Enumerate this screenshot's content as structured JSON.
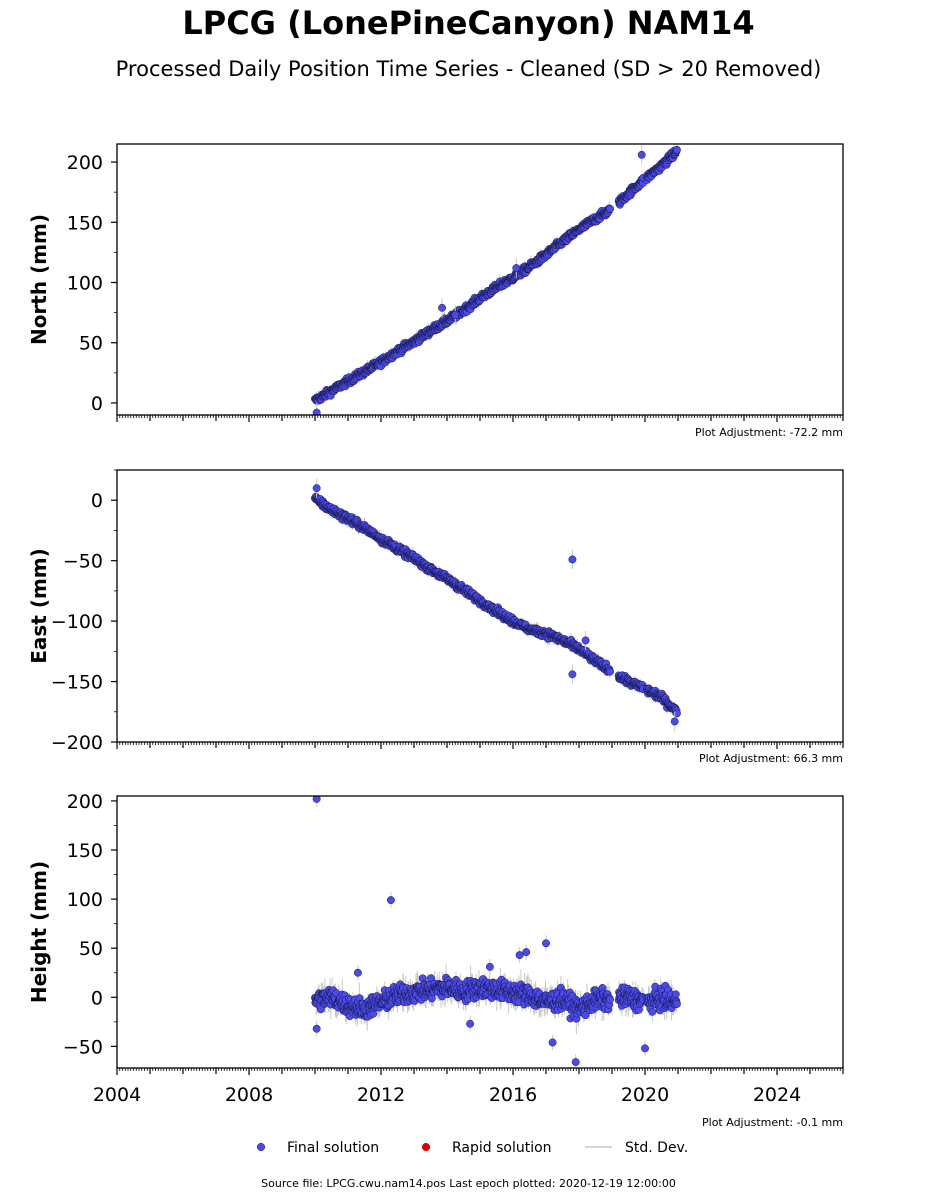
{
  "title": "LPCG (LonePineCanyon) NAM14",
  "subtitle": "Processed Daily Position Time Series - Cleaned (SD > 20 Removed)",
  "source_note": "Source file: LPCG.cwu.nam14.pos  Last epoch plotted: 2020-12-19 12:00:00",
  "colors": {
    "final": "#4a4aee",
    "final_edge": "#1a1a4a",
    "rapid": "#dd0000",
    "std": "#c8c8c8"
  },
  "legend": [
    {
      "label": "Final solution",
      "marker": "circle",
      "color": "#4a4aee"
    },
    {
      "label": "Rapid solution",
      "marker": "circle",
      "color": "#dd0000"
    },
    {
      "label": "Std. Dev.",
      "marker": "line",
      "color": "#c8c8c8"
    }
  ],
  "chart_data": [
    {
      "type": "scatter",
      "ylabel": "North (mm)",
      "adjustment": "Plot Adjustment: -72.2 mm",
      "xlim": [
        2004.0,
        2026.0
      ],
      "ylim": [
        -10,
        215
      ],
      "yticks": [
        0,
        50,
        100,
        150,
        200
      ],
      "yticklabels": [
        "0",
        "50",
        "100",
        "150",
        "200"
      ],
      "xticklabels": [],
      "series": [
        {
          "x": [
            2010.0,
            2010.5,
            2011.0,
            2011.5,
            2012.0,
            2012.5,
            2013.0,
            2013.5,
            2014.0,
            2014.5,
            2015.0,
            2015.5,
            2016.0,
            2016.5,
            2017.0,
            2017.5,
            2018.0,
            2018.5,
            2019.0,
            2019.5,
            2020.0,
            2020.5,
            2020.97
          ],
          "y": [
            2,
            10,
            18,
            26,
            34,
            43,
            51,
            60,
            68,
            77,
            87,
            96,
            104,
            113,
            123,
            134,
            144,
            153,
            161,
            174,
            186,
            197,
            209
          ]
        }
      ],
      "outliers": {
        "x": [
          2010.05,
          2013.85,
          2014.25,
          2019.9,
          2016.1
        ],
        "y": [
          -8,
          79,
          73,
          206,
          112
        ]
      }
    },
    {
      "type": "scatter",
      "ylabel": "East (mm)",
      "adjustment": "Plot Adjustment: 66.3 mm",
      "xlim": [
        2004.0,
        2026.0
      ],
      "ylim": [
        -200,
        25
      ],
      "yticks": [
        0,
        -50,
        -100,
        -150,
        -200
      ],
      "yticklabels": [
        "0",
        "−50",
        "−100",
        "−150",
        "−200"
      ],
      "xticklabels": [],
      "series": [
        {
          "x": [
            2010.0,
            2010.5,
            2011.0,
            2011.5,
            2012.0,
            2012.5,
            2013.0,
            2013.5,
            2014.0,
            2014.5,
            2015.0,
            2015.5,
            2016.0,
            2016.5,
            2017.0,
            2017.5,
            2018.0,
            2018.5,
            2019.0,
            2019.5,
            2020.0,
            2020.5,
            2020.97
          ],
          "y": [
            1,
            -8,
            -15,
            -23,
            -32,
            -40,
            -48,
            -57,
            -65,
            -74,
            -83,
            -92,
            -100,
            -107,
            -110,
            -116,
            -123,
            -133,
            -142,
            -150,
            -156,
            -163,
            -175
          ]
        }
      ],
      "outliers": {
        "x": [
          2017.8,
          2017.8,
          2018.2,
          2010.05,
          2020.9
        ],
        "y": [
          -49,
          -144,
          -116,
          10,
          -183
        ]
      }
    },
    {
      "type": "scatter",
      "ylabel": "Height (mm)",
      "adjustment": "Plot Adjustment: -0.1 mm",
      "xlim": [
        2004.0,
        2026.0
      ],
      "ylim": [
        -72,
        205
      ],
      "yticks": [
        -50,
        0,
        50,
        100,
        150,
        200
      ],
      "yticklabels": [
        "−50",
        "0",
        "50",
        "100",
        "150",
        "200"
      ],
      "xticks": [
        2004,
        2008,
        2012,
        2016,
        2020,
        2024
      ],
      "xticklabels": [
        "2004",
        "2008",
        "2012",
        "2016",
        "2020",
        "2024"
      ],
      "series": [
        {
          "x": [
            2010.0,
            2010.5,
            2011.0,
            2011.5,
            2012.0,
            2012.5,
            2013.0,
            2013.5,
            2014.0,
            2014.5,
            2015.0,
            2015.5,
            2016.0,
            2016.5,
            2017.0,
            2017.5,
            2018.0,
            2018.5,
            2019.0,
            2019.5,
            2020.0,
            2020.5,
            2020.97
          ],
          "y": [
            -3,
            0,
            -8,
            -12,
            -5,
            2,
            5,
            8,
            10,
            6,
            10,
            8,
            5,
            2,
            -5,
            -2,
            -12,
            -3,
            -2,
            0,
            -5,
            -2,
            -5
          ]
        }
      ],
      "outliers": {
        "x": [
          2010.05,
          2012.3,
          2016.2,
          2016.4,
          2015.3,
          2017.0,
          2017.9,
          2020.0,
          2017.2,
          2014.7,
          2011.3,
          2010.05
        ],
        "y": [
          202,
          99,
          43,
          46,
          31,
          55,
          -66,
          -52,
          -46,
          -27,
          25,
          -32
        ]
      }
    }
  ]
}
